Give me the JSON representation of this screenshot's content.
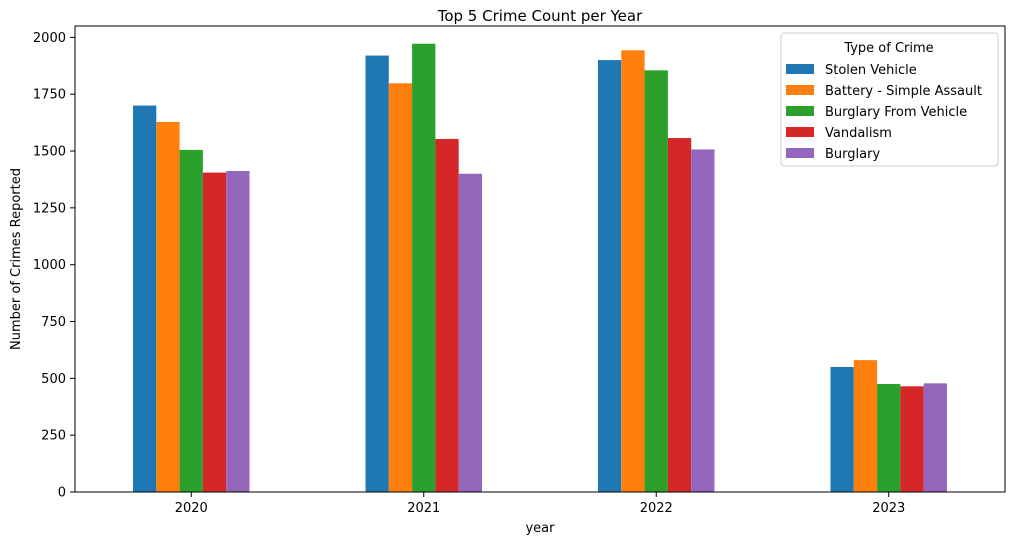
{
  "chart_data": {
    "type": "bar",
    "title": "Top 5 Crime Count per Year",
    "xlabel": "year",
    "ylabel": "Number of Crimes Reported",
    "categories": [
      "2020",
      "2021",
      "2022",
      "2023"
    ],
    "ylim": [
      0,
      2050
    ],
    "yticks": [
      0,
      250,
      500,
      750,
      1000,
      1250,
      1500,
      1750,
      2000
    ],
    "grid": false,
    "legend": {
      "title": "Type of Crime",
      "placement": "top-right"
    },
    "series": [
      {
        "name": "Stolen Vehicle",
        "color": "#1f77b4",
        "values": [
          1700,
          1920,
          1900,
          550
        ]
      },
      {
        "name": "Battery - Simple Assault",
        "color": "#ff7f0e",
        "values": [
          1628,
          1798,
          1943,
          580
        ]
      },
      {
        "name": "Burglary From Vehicle",
        "color": "#2ca02c",
        "values": [
          1505,
          1972,
          1855,
          475
        ]
      },
      {
        "name": "Vandalism",
        "color": "#d62728",
        "values": [
          1405,
          1553,
          1557,
          465
        ]
      },
      {
        "name": "Burglary",
        "color": "#9467bd",
        "values": [
          1412,
          1400,
          1507,
          478
        ]
      }
    ]
  }
}
